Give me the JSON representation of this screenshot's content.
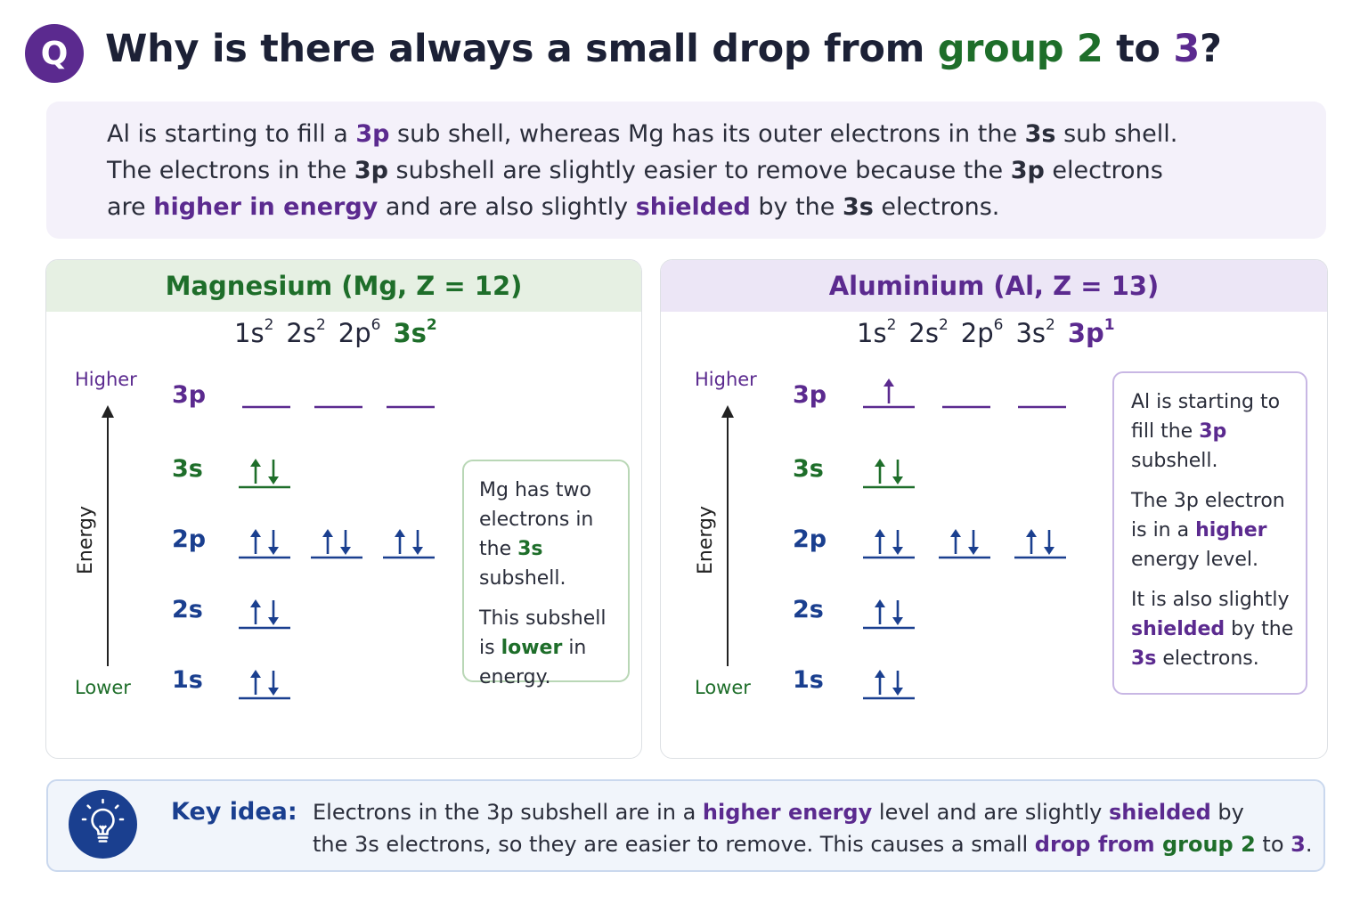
{
  "question": {
    "badge": "Q",
    "title_part1": "Why is there always a small drop from ",
    "title_group2": "group 2",
    "title_to": " to ",
    "title_3": "3",
    "title_end": "?"
  },
  "intro": {
    "line1": [
      {
        "t": "Al is starting to fill a ",
        "s": ""
      },
      {
        "t": "3p",
        "s": "purple bold"
      },
      {
        "t": " sub shell, whereas Mg has its outer electrons in the ",
        "s": ""
      },
      {
        "t": "3s",
        "s": "bold"
      },
      {
        "t": " sub shell.",
        "s": ""
      }
    ],
    "line2": [
      {
        "t": "The electrons in the ",
        "s": ""
      },
      {
        "t": "3p",
        "s": "bold"
      },
      {
        "t": " subshell are slightly easier to remove because the ",
        "s": ""
      },
      {
        "t": "3p",
        "s": "bold"
      },
      {
        "t": " electrons",
        "s": ""
      }
    ],
    "line3": [
      {
        "t": "are ",
        "s": ""
      },
      {
        "t": "higher in energy",
        "s": "purple bold"
      },
      {
        "t": " and are also slightly ",
        "s": ""
      },
      {
        "t": "shielded",
        "s": "purple bold"
      },
      {
        "t": " by the ",
        "s": ""
      },
      {
        "t": "3s",
        "s": "bold"
      },
      {
        "t": " electrons.",
        "s": ""
      }
    ]
  },
  "magnesium": {
    "heading": "Magnesium (Mg, Z = 12)",
    "config": [
      {
        "base": "1s",
        "sup": "2",
        "s": ""
      },
      {
        "base": "2s",
        "sup": "2",
        "s": ""
      },
      {
        "base": "2p",
        "sup": "6",
        "s": ""
      },
      {
        "base": "3s",
        "sup": "2",
        "s": "green bold"
      }
    ],
    "axis_high": "Higher",
    "axis_low": "Lower",
    "axis_label": "Energy",
    "levels": [
      {
        "label": "3p",
        "color": "#5b2a8f",
        "orbitals": [
          "empty",
          "empty",
          "empty"
        ]
      },
      {
        "label": "3s",
        "color": "#1e6e2a",
        "orbitals": [
          "pair"
        ]
      },
      {
        "label": "2p",
        "color": "#1a3f8f",
        "orbitals": [
          "pair",
          "pair",
          "pair"
        ]
      },
      {
        "label": "2s",
        "color": "#1a3f8f",
        "orbitals": [
          "pair"
        ]
      },
      {
        "label": "1s",
        "color": "#1a3f8f",
        "orbitals": [
          "pair"
        ]
      }
    ],
    "note": [
      [
        {
          "t": "Mg has two electrons in the ",
          "s": ""
        },
        {
          "t": "3s",
          "s": "green bold"
        },
        {
          "t": " subshell.",
          "s": ""
        }
      ],
      [
        {
          "t": "This subshell is ",
          "s": ""
        },
        {
          "t": "lower",
          "s": "green bold"
        },
        {
          "t": " in energy.",
          "s": ""
        }
      ]
    ]
  },
  "aluminium": {
    "heading": "Aluminium (Al, Z = 13)",
    "config": [
      {
        "base": "1s",
        "sup": "2",
        "s": ""
      },
      {
        "base": "2s",
        "sup": "2",
        "s": ""
      },
      {
        "base": "2p",
        "sup": "6",
        "s": ""
      },
      {
        "base": "3s",
        "sup": "2",
        "s": ""
      },
      {
        "base": "3p",
        "sup": "1",
        "s": "purple bold"
      }
    ],
    "axis_high": "Higher",
    "axis_low": "Lower",
    "axis_label": "Energy",
    "levels": [
      {
        "label": "3p",
        "color": "#5b2a8f",
        "orbitals": [
          "up",
          "empty",
          "empty"
        ]
      },
      {
        "label": "3s",
        "color": "#1e6e2a",
        "orbitals": [
          "pair"
        ]
      },
      {
        "label": "2p",
        "color": "#1a3f8f",
        "orbitals": [
          "pair",
          "pair",
          "pair"
        ]
      },
      {
        "label": "2s",
        "color": "#1a3f8f",
        "orbitals": [
          "pair"
        ]
      },
      {
        "label": "1s",
        "color": "#1a3f8f",
        "orbitals": [
          "pair"
        ]
      }
    ],
    "note": [
      [
        {
          "t": "Al is starting to fill the ",
          "s": ""
        },
        {
          "t": "3p",
          "s": "purple bold"
        },
        {
          "t": " subshell.",
          "s": ""
        }
      ],
      [
        {
          "t": "The 3p electron is in a ",
          "s": ""
        },
        {
          "t": "higher",
          "s": "purple bold"
        },
        {
          "t": " energy level.",
          "s": ""
        }
      ],
      [
        {
          "t": "It is also slightly ",
          "s": ""
        },
        {
          "t": "shielded",
          "s": "purple bold"
        },
        {
          "t": " by the ",
          "s": ""
        },
        {
          "t": "3s",
          "s": "purple bold"
        },
        {
          "t": " electrons.",
          "s": ""
        }
      ]
    ]
  },
  "key_idea": {
    "label": "Key idea:",
    "icon": "lightbulb-icon",
    "line1": [
      {
        "t": "Electrons in the 3p subshell are in a ",
        "s": ""
      },
      {
        "t": "higher energy",
        "s": "purple bold"
      },
      {
        "t": " level and are slightly ",
        "s": ""
      },
      {
        "t": "shielded",
        "s": "purple bold"
      },
      {
        "t": " by",
        "s": ""
      }
    ],
    "line2": [
      {
        "t": "the 3s electrons, so they are easier to remove. This causes a small ",
        "s": ""
      },
      {
        "t": "drop from ",
        "s": "purple bold"
      },
      {
        "t": "group 2",
        "s": "green bold"
      },
      {
        "t": " to ",
        "s": ""
      },
      {
        "t": "3",
        "s": "purple bold"
      },
      {
        "t": ".",
        "s": ""
      }
    ]
  },
  "colors": {
    "purple": "#5b2a8f",
    "green": "#1e6e2a",
    "blue": "#1a3f8f"
  }
}
